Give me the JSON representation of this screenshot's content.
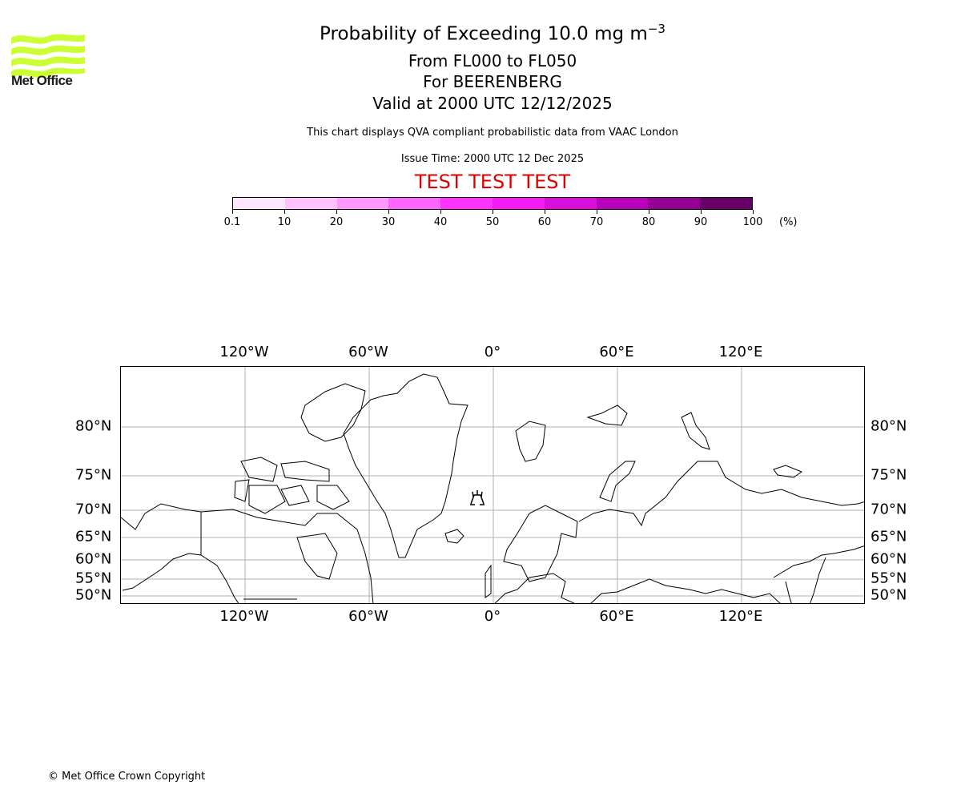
{
  "logo": {
    "text": "Met Office",
    "color": "#ccff33"
  },
  "title": {
    "line1": "Probability of Exceeding 10.0 mg m",
    "line1_sup": "−3",
    "line2": "From FL000 to FL050",
    "line3": "For BEERENBERG",
    "line4": "Valid at 2000 UTC 12/12/2025"
  },
  "subtitle": "This chart displays QVA compliant probabilistic data from VAAC London",
  "issue_time": "Issue Time: 2000 UTC 12 Dec 2025",
  "test_banner": "TEST TEST TEST",
  "colorbar": {
    "unit": "(%)",
    "ticks": [
      "0.1",
      "10",
      "20",
      "30",
      "40",
      "50",
      "60",
      "70",
      "80",
      "90",
      "100"
    ],
    "colors": [
      "#ffe6ff",
      "#ffc2ff",
      "#ff99ff",
      "#ff66ff",
      "#ff33ff",
      "#f51bf5",
      "#d90fd9",
      "#bb00bb",
      "#930093",
      "#660066"
    ]
  },
  "map": {
    "volcano": "BEERENBERG",
    "volcano_icon": "volcano-icon",
    "lon_labels": [
      "120°W",
      "60°W",
      "0°",
      "60°E",
      "120°E"
    ],
    "lat_labels": [
      "80°N",
      "75°N",
      "70°N",
      "65°N",
      "60°N",
      "55°N",
      "50°N"
    ]
  },
  "footer": {
    "copyright": "© Met Office Crown Copyright"
  },
  "chart_data": {
    "type": "heatmap",
    "title": "Probability of Exceeding 10.0 mg m-3",
    "subtitle": "From FL000 to FL050, For BEERENBERG, Valid at 2000 UTC 12/12/2025",
    "colorbar_bounds": [
      0.1,
      10,
      20,
      30,
      40,
      50,
      60,
      70,
      80,
      90,
      100
    ],
    "colorbar_unit": "%",
    "x_ticks": [
      "120°W",
      "60°W",
      "0°",
      "60°E",
      "120°E"
    ],
    "y_ticks": [
      "50°N",
      "55°N",
      "60°N",
      "65°N",
      "70°N",
      "75°N",
      "80°N"
    ],
    "grid": true,
    "values": [],
    "marker": {
      "name": "BEERENBERG",
      "lon": -8,
      "lat": 71
    }
  }
}
